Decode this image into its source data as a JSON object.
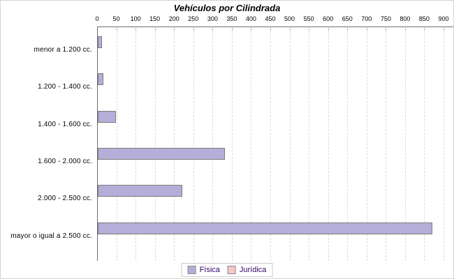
{
  "chart_data": {
    "type": "bar",
    "orientation": "horizontal",
    "title": "Vehículos por Cilindrada",
    "categories": [
      "menor a 1.200 cc.",
      "1.200 - 1.400 cc.",
      "1.400 - 1.600 cc.",
      "1.600 - 2.000 cc.",
      "2.000 - 2.500 cc.",
      "mayor o igual a 2.500 cc."
    ],
    "series": [
      {
        "name": "Física",
        "color": "#b5aed8",
        "border": "#7a7a7a",
        "values": [
          10,
          15,
          48,
          330,
          220,
          870
        ]
      },
      {
        "name": "Jurídica",
        "color": "#f7c6c6",
        "border": "#7a7a7a",
        "values": [
          0,
          0,
          0,
          0,
          0,
          0
        ]
      }
    ],
    "xlim": [
      0,
      900
    ],
    "xtick_step": 50,
    "xticks": [
      0,
      50,
      100,
      150,
      200,
      250,
      300,
      350,
      400,
      450,
      500,
      550,
      600,
      650,
      700,
      750,
      800,
      850,
      900
    ],
    "grid": "vertical-dashed",
    "legend_position": "bottom"
  },
  "colors": {
    "axis": "#6e6e6e",
    "gridline": "#d9d9d9",
    "legend_text": "#330066",
    "background": "#ffffff"
  }
}
